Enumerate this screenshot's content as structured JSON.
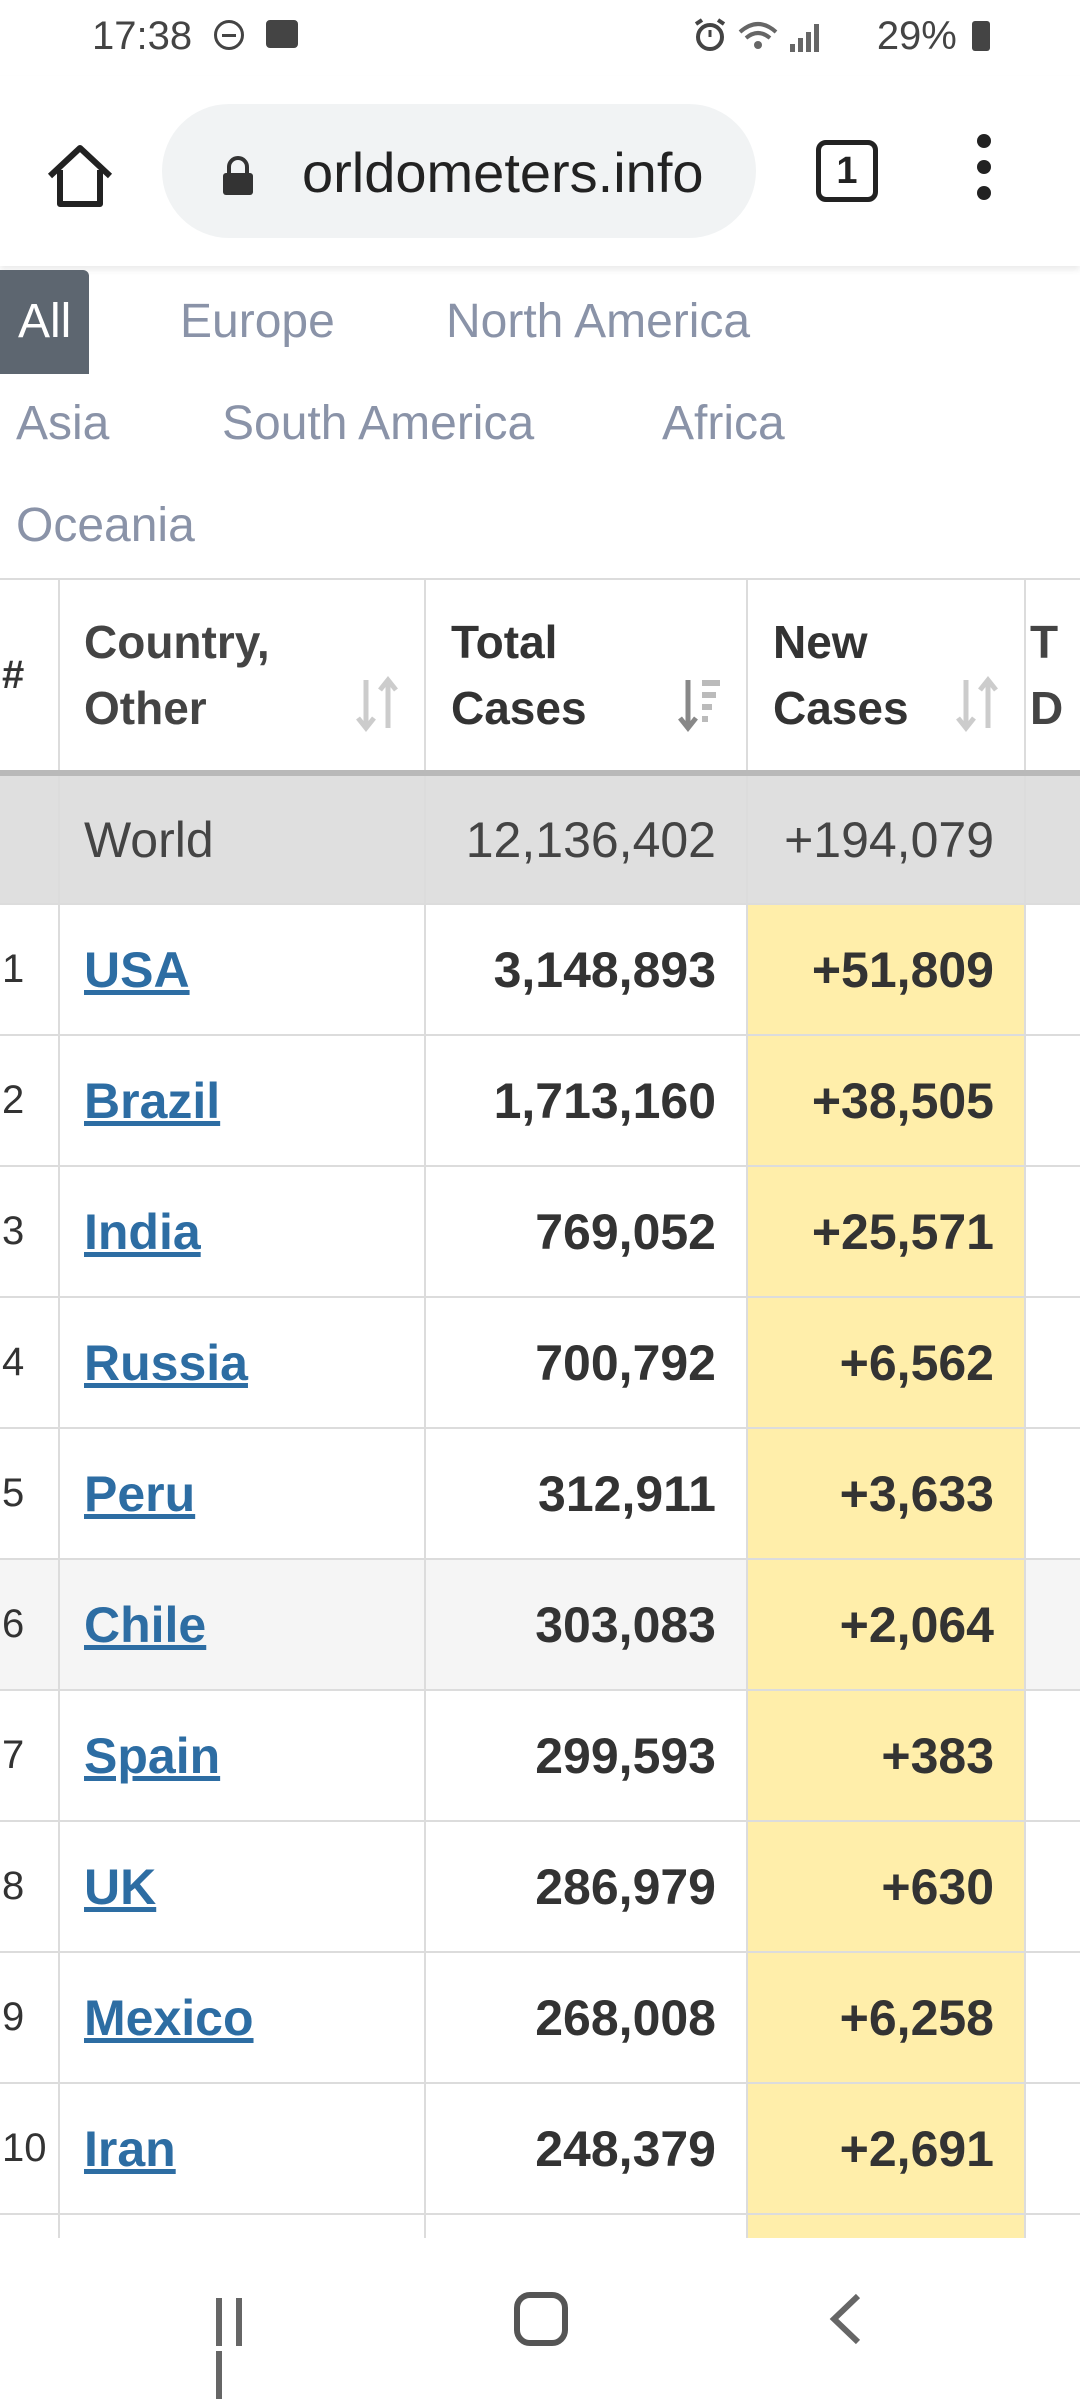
{
  "status_bar": {
    "time": "17:38",
    "battery": "29%",
    "icons": [
      "dnd-icon",
      "gallery-icon",
      "alarm-icon",
      "wifi-icon",
      "signal-icon",
      "battery-icon"
    ]
  },
  "browser": {
    "url": "orldometers.info",
    "tab_count": "1"
  },
  "region_tabs": [
    {
      "label": "All",
      "active": true
    },
    {
      "label": "Europe"
    },
    {
      "label": "North America"
    },
    {
      "label": "Asia"
    },
    {
      "label": "South America"
    },
    {
      "label": "Africa"
    },
    {
      "label": "Oceania"
    }
  ],
  "table": {
    "headers": {
      "num": "#",
      "country_line1": "Country,",
      "country_line2": "Other",
      "total_line1": "Total",
      "total_line2": "Cases",
      "new_line1": "New",
      "new_line2": "Cases",
      "next_line1": "T",
      "next_line2": "D"
    },
    "world": {
      "country": "World",
      "total": "12,136,402",
      "new": "+194,079"
    },
    "rows": [
      {
        "num": "1",
        "country": "USA",
        "total": "3,148,893",
        "new": "+51,809"
      },
      {
        "num": "2",
        "country": "Brazil",
        "total": "1,713,160",
        "new": "+38,505"
      },
      {
        "num": "3",
        "country": "India",
        "total": "769,052",
        "new": "+25,571"
      },
      {
        "num": "4",
        "country": "Russia",
        "total": "700,792",
        "new": "+6,562"
      },
      {
        "num": "5",
        "country": "Peru",
        "total": "312,911",
        "new": "+3,633"
      },
      {
        "num": "6",
        "country": "Chile",
        "total": "303,083",
        "new": "+2,064"
      },
      {
        "num": "7",
        "country": "Spain",
        "total": "299,593",
        "new": "+383"
      },
      {
        "num": "8",
        "country": "UK",
        "total": "286,979",
        "new": "+630"
      },
      {
        "num": "9",
        "country": "Mexico",
        "total": "268,008",
        "new": "+6,258"
      },
      {
        "num": "10",
        "country": "Iran",
        "total": "248,379",
        "new": "+2,691"
      }
    ]
  },
  "colors": {
    "link": "#2d6da3",
    "new_cases_bg": "#ffeeaa",
    "active_tab_bg": "#5d6670",
    "inactive_tab_text": "#8a93a8"
  }
}
